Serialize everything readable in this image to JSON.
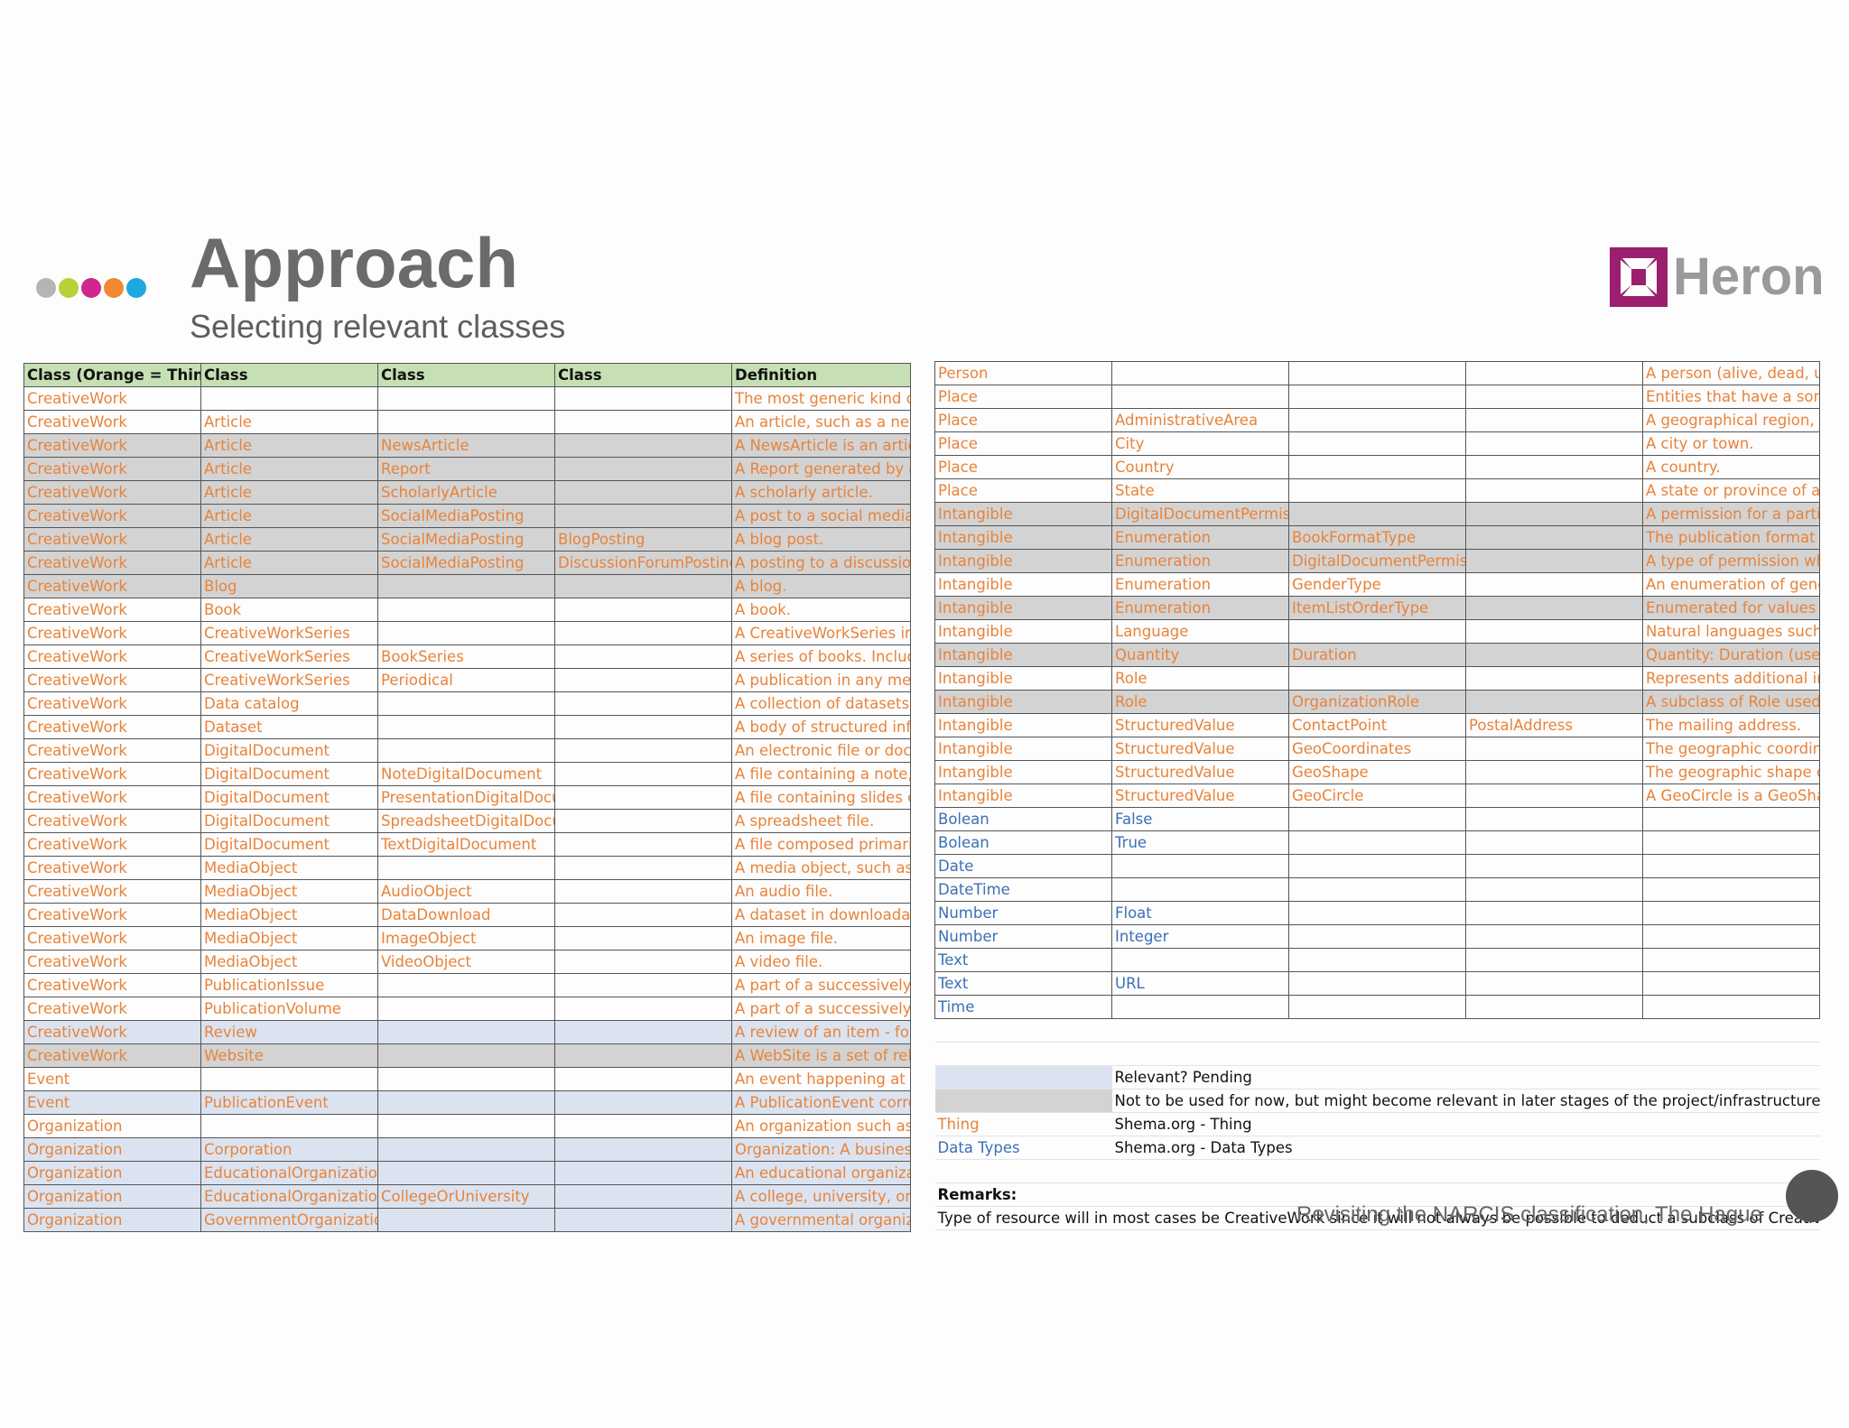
{
  "header": {
    "title": "Approach",
    "subtitle": "Selecting relevant classes"
  },
  "dots_colors": [
    "#b5b5b5",
    "#b5d334",
    "#d1268d",
    "#f08a30",
    "#1ca9dd"
  ],
  "logo": {
    "text": "Heron",
    "color": "#9b1f6e"
  },
  "footer": "Revisiting the NARCIS classification, The Hague",
  "colors": {
    "thing": "#e8833a",
    "data_types": "#3b6fb6",
    "pending": "#dbe3f0",
    "not_now": "#d3d3d3",
    "header": "#c6e0b4"
  },
  "left_table": {
    "headers": [
      "Class (Orange = Thing, Blue = Data Types)",
      "Class",
      "Class",
      "Class",
      "Definition"
    ],
    "rows": [
      {
        "c": [
          "CreativeWork",
          "",
          "",
          "",
          "The most generic kind of creative work"
        ],
        "s": ""
      },
      {
        "c": [
          "CreativeWork",
          "Article",
          "",
          "",
          "An article, such as a news article"
        ],
        "s": ""
      },
      {
        "c": [
          "CreativeWork",
          "Article",
          "NewsArticle",
          "",
          "A NewsArticle is an article"
        ],
        "s": "grey"
      },
      {
        "c": [
          "CreativeWork",
          "Article",
          "Report",
          "",
          "A Report generated by g"
        ],
        "s": "grey"
      },
      {
        "c": [
          "CreativeWork",
          "Article",
          "ScholarlyArticle",
          "",
          "A scholarly article."
        ],
        "s": "grey"
      },
      {
        "c": [
          "CreativeWork",
          "Article",
          "SocialMediaPosting",
          "",
          "A post to a social media"
        ],
        "s": "grey"
      },
      {
        "c": [
          "CreativeWork",
          "Article",
          "SocialMediaPosting",
          "BlogPosting",
          "A blog post."
        ],
        "s": "grey"
      },
      {
        "c": [
          "CreativeWork",
          "Article",
          "SocialMediaPosting",
          "DiscussionForumPosting",
          "A posting to a discussion"
        ],
        "s": "grey"
      },
      {
        "c": [
          "CreativeWork",
          "Blog",
          "",
          "",
          "A blog."
        ],
        "s": "grey"
      },
      {
        "c": [
          "CreativeWork",
          "Book",
          "",
          "",
          "A book."
        ],
        "s": ""
      },
      {
        "c": [
          "CreativeWork",
          "CreativeWorkSeries",
          "",
          "",
          "A CreativeWorkSeries in"
        ],
        "s": ""
      },
      {
        "c": [
          "CreativeWork",
          "CreativeWorkSeries",
          "BookSeries",
          "",
          "A series of books. Includ"
        ],
        "s": ""
      },
      {
        "c": [
          "CreativeWork",
          "CreativeWorkSeries",
          "Periodical",
          "",
          "A publication in any med"
        ],
        "s": ""
      },
      {
        "c": [
          "CreativeWork",
          "Data catalog",
          "",
          "",
          "A collection of datasets."
        ],
        "s": ""
      },
      {
        "c": [
          "CreativeWork",
          "Dataset",
          "",
          "",
          "A body of structured info"
        ],
        "s": ""
      },
      {
        "c": [
          "CreativeWork",
          "DigitalDocument",
          "",
          "",
          "An electronic file or doc"
        ],
        "s": ""
      },
      {
        "c": [
          "CreativeWork",
          "DigitalDocument",
          "NoteDigitalDocument",
          "",
          "A file containing a note,"
        ],
        "s": ""
      },
      {
        "c": [
          "CreativeWork",
          "DigitalDocument",
          "PresentationDigitalDocument",
          "",
          "A file containing slides c"
        ],
        "s": ""
      },
      {
        "c": [
          "CreativeWork",
          "DigitalDocument",
          "SpreadsheetDigitalDocument",
          "",
          "A spreadsheet file."
        ],
        "s": ""
      },
      {
        "c": [
          "CreativeWork",
          "DigitalDocument",
          "TextDigitalDocument",
          "",
          "A file composed primari"
        ],
        "s": ""
      },
      {
        "c": [
          "CreativeWork",
          "MediaObject",
          "",
          "",
          "A media object, such as"
        ],
        "s": ""
      },
      {
        "c": [
          "CreativeWork",
          "MediaObject",
          "AudioObject",
          "",
          "An audio file."
        ],
        "s": ""
      },
      {
        "c": [
          "CreativeWork",
          "MediaObject",
          "DataDownload",
          "",
          "A dataset in downloadal"
        ],
        "s": ""
      },
      {
        "c": [
          "CreativeWork",
          "MediaObject",
          "ImageObject",
          "",
          "An image file."
        ],
        "s": ""
      },
      {
        "c": [
          "CreativeWork",
          "MediaObject",
          "VideoObject",
          "",
          "A video file."
        ],
        "s": ""
      },
      {
        "c": [
          "CreativeWork",
          "PublicationIssue",
          "",
          "",
          "A part of a successively p"
        ],
        "s": ""
      },
      {
        "c": [
          "CreativeWork",
          "PublicationVolume",
          "",
          "",
          "A part of a successively p"
        ],
        "s": ""
      },
      {
        "c": [
          "CreativeWork",
          "Review",
          "",
          "",
          "A review of an item - for"
        ],
        "s": "blue"
      },
      {
        "c": [
          "CreativeWork",
          "Website",
          "",
          "",
          "A WebSite is a set of rela"
        ],
        "s": "grey"
      },
      {
        "c": [
          "Event",
          "",
          "",
          "",
          "An event happening at a"
        ],
        "s": ""
      },
      {
        "c": [
          "Event",
          "PublicationEvent",
          "",
          "",
          "A PublicationEvent corre"
        ],
        "s": "blue"
      },
      {
        "c": [
          "Organization",
          "",
          "",
          "",
          "An organization such as"
        ],
        "s": ""
      },
      {
        "c": [
          "Organization",
          "Corporation",
          "",
          "",
          "Organization: A business"
        ],
        "s": "blue"
      },
      {
        "c": [
          "Organization",
          "EducationalOrganization",
          "",
          "",
          "An educational organiza"
        ],
        "s": "blue"
      },
      {
        "c": [
          "Organization",
          "EducationalOrganization",
          "CollegeOrUniversity",
          "",
          "A college, university, or"
        ],
        "s": "blue"
      },
      {
        "c": [
          "Organization",
          "GovernmentOrganization",
          "",
          "",
          "A governmental organiz"
        ],
        "s": "blue"
      }
    ]
  },
  "right_table": {
    "rows": [
      {
        "c": [
          "Person",
          "",
          "",
          "",
          "A person (alive, dead, un"
        ],
        "s": "",
        "t": "o"
      },
      {
        "c": [
          "Place",
          "",
          "",
          "",
          "Entities that have a som"
        ],
        "s": "",
        "t": "o"
      },
      {
        "c": [
          "Place",
          "AdministrativeArea",
          "",
          "",
          "A geographical region, t"
        ],
        "s": "",
        "t": "o"
      },
      {
        "c": [
          "Place",
          "City",
          "",
          "",
          "A city or town."
        ],
        "s": "",
        "t": "o"
      },
      {
        "c": [
          "Place",
          "Country",
          "",
          "",
          "A country."
        ],
        "s": "",
        "t": "o"
      },
      {
        "c": [
          "Place",
          "State",
          "",
          "",
          "A state or province of a c"
        ],
        "s": "",
        "t": "o"
      },
      {
        "c": [
          "Intangible",
          "DigitalDocumentPermission",
          "",
          "",
          "A permission for a partic"
        ],
        "s": "grey",
        "t": "o"
      },
      {
        "c": [
          "Intangible",
          "Enumeration",
          "BookFormatType",
          "",
          "The publication format o"
        ],
        "s": "grey",
        "t": "o"
      },
      {
        "c": [
          "Intangible",
          "Enumeration",
          "DigitalDocumentPermissionType",
          "",
          "A type of permission wh"
        ],
        "s": "grey",
        "t": "o"
      },
      {
        "c": [
          "Intangible",
          "Enumeration",
          "GenderType",
          "",
          "An enumeration of gend"
        ],
        "s": "",
        "t": "o"
      },
      {
        "c": [
          "Intangible",
          "Enumeration",
          "ItemListOrderType",
          "",
          "Enumerated for values f"
        ],
        "s": "grey",
        "t": "o"
      },
      {
        "c": [
          "Intangible",
          "Language",
          "",
          "",
          "Natural languages such a"
        ],
        "s": "",
        "t": "o"
      },
      {
        "c": [
          "Intangible",
          "Quantity",
          "Duration",
          "",
          "Quantity: Duration (use"
        ],
        "s": "grey",
        "t": "o"
      },
      {
        "c": [
          "Intangible",
          "Role",
          "",
          "",
          "Represents additional in"
        ],
        "s": "",
        "t": "o"
      },
      {
        "c": [
          "Intangible",
          "Role",
          "OrganizationRole",
          "",
          "A subclass of Role used"
        ],
        "s": "grey",
        "t": "o"
      },
      {
        "c": [
          "Intangible",
          "StructuredValue",
          "ContactPoint",
          "PostalAddress",
          "The mailing address."
        ],
        "s": "",
        "t": "o"
      },
      {
        "c": [
          "Intangible",
          "StructuredValue",
          "GeoCoordinates",
          "",
          "The geographic coordina"
        ],
        "s": "",
        "t": "o"
      },
      {
        "c": [
          "Intangible",
          "StructuredValue",
          "GeoShape",
          "",
          "The geographic shape of"
        ],
        "s": "",
        "t": "o"
      },
      {
        "c": [
          "Intangible",
          "StructuredValue",
          "GeoCircle",
          "",
          "A GeoCircle is a GeoShap"
        ],
        "s": "",
        "t": "o"
      },
      {
        "c": [
          "Bolean",
          "False",
          "",
          "",
          ""
        ],
        "s": "",
        "t": "b"
      },
      {
        "c": [
          "Bolean",
          "True",
          "",
          "",
          ""
        ],
        "s": "",
        "t": "b"
      },
      {
        "c": [
          "Date",
          "",
          "",
          "",
          ""
        ],
        "s": "",
        "t": "b"
      },
      {
        "c": [
          "DateTime",
          "",
          "",
          "",
          ""
        ],
        "s": "",
        "t": "b"
      },
      {
        "c": [
          "Number",
          "Float",
          "",
          "",
          ""
        ],
        "s": "",
        "t": "b"
      },
      {
        "c": [
          "Number",
          "Integer",
          "",
          "",
          ""
        ],
        "s": "",
        "t": "b"
      },
      {
        "c": [
          "Text",
          "",
          "",
          "",
          ""
        ],
        "s": "",
        "t": "b"
      },
      {
        "c": [
          "Text",
          "URL",
          "",
          "",
          ""
        ],
        "s": "",
        "t": "b"
      },
      {
        "c": [
          "Time",
          "",
          "",
          "",
          ""
        ],
        "s": "",
        "t": "b"
      }
    ],
    "legend": [
      {
        "label": "",
        "text": "Relevant? Pending",
        "swatch": "blue"
      },
      {
        "label": "",
        "text": "Not to be used for now, but might become relevant in later stages of the project/infrastructure l",
        "swatch": "grey"
      },
      {
        "label": "Thing",
        "text": "Shema.org - Thing",
        "swatch": "",
        "label_color": "o"
      },
      {
        "label": "Data Types",
        "text": "Shema.org - Data Types",
        "swatch": "",
        "label_color": "b"
      }
    ],
    "remarks_label": "Remarks:",
    "remarks_text": "Type of resource will in most cases be CreativeWork since it will not always be possible to deduct a subclass of CreativeW"
  }
}
